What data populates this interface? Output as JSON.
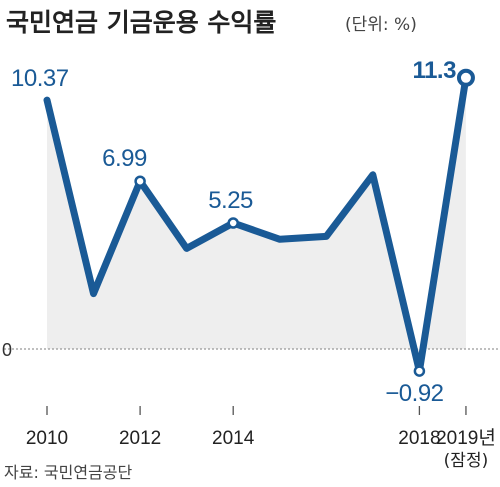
{
  "title": "국민연금 기금운용 수익률",
  "unit": "(단위: %)",
  "source": "자료: 국민연금공단",
  "chart_data": {
    "type": "area",
    "title": "국민연금 기금운용 수익률",
    "unit": "(단위: %)",
    "x": [
      2010,
      2011,
      2012,
      2013,
      2014,
      2015,
      2016,
      2017,
      2018,
      2019
    ],
    "values": [
      10.37,
      2.31,
      6.99,
      4.19,
      5.25,
      4.57,
      4.69,
      7.26,
      -0.92,
      11.3
    ],
    "point_labels": [
      {
        "index": 0,
        "text": "10.37"
      },
      {
        "index": 2,
        "text": "6.99"
      },
      {
        "index": 4,
        "text": "5.25"
      },
      {
        "index": 8,
        "text": "−0.92"
      },
      {
        "index": 9,
        "text": "11.3"
      }
    ],
    "x_tick_labels": [
      {
        "index": 0,
        "text": "2010"
      },
      {
        "index": 2,
        "text": "2012"
      },
      {
        "index": 4,
        "text": "2014"
      },
      {
        "index": 8,
        "text": "2018"
      },
      {
        "index": 9,
        "text": "2019년",
        "sub": "(잠정)"
      }
    ],
    "zero_label": "0",
    "ylim": [
      -1.5,
      12
    ],
    "grid": false,
    "colors": {
      "line": "#1a5a96",
      "area": "#eeeeee",
      "zero_line": "#999999",
      "text": "#222222"
    }
  }
}
